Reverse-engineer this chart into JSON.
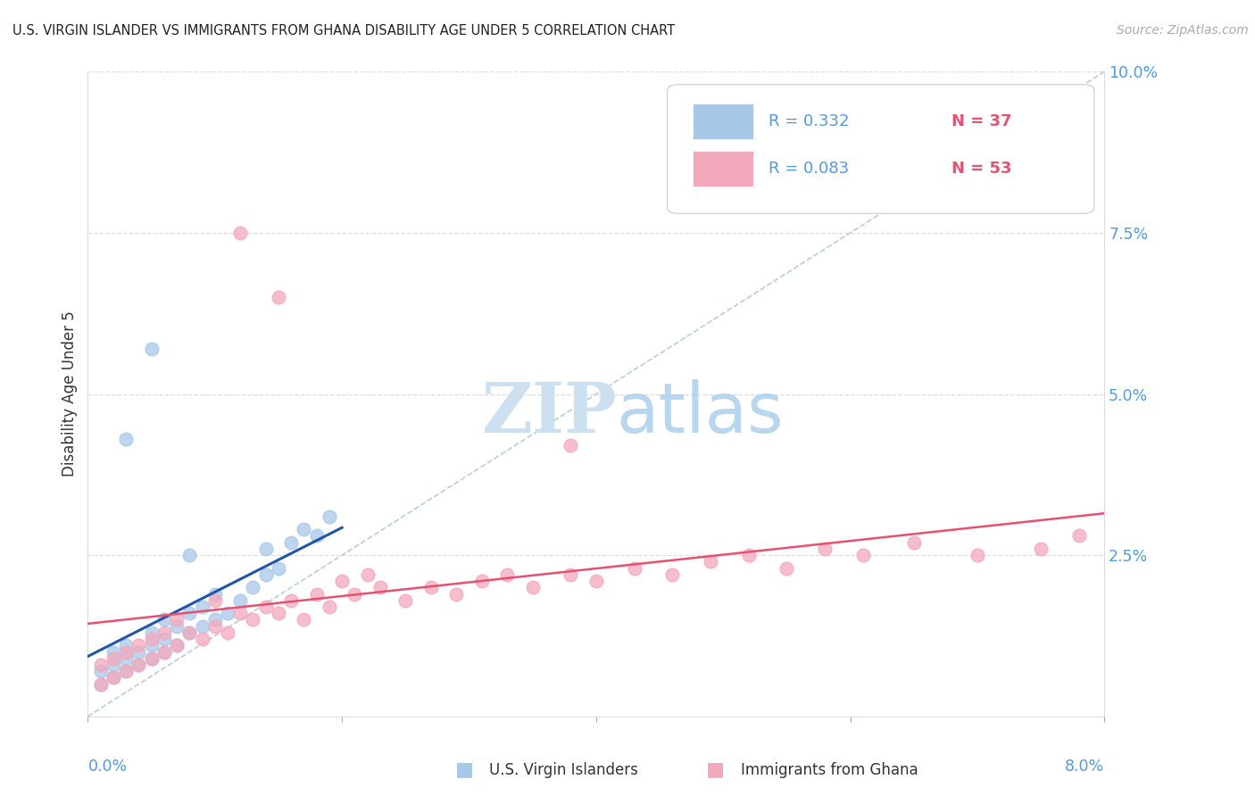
{
  "title": "U.S. VIRGIN ISLANDER VS IMMIGRANTS FROM GHANA DISABILITY AGE UNDER 5 CORRELATION CHART",
  "source": "Source: ZipAtlas.com",
  "ylabel": "Disability Age Under 5",
  "color_blue": "#a8c8e8",
  "color_pink": "#f4a8bc",
  "line_blue": "#2255aa",
  "line_pink": "#e85070",
  "diag_color": "#bbccdd",
  "grid_color": "#dddddd",
  "tick_color": "#5599dd",
  "legend_r1": "R = 0.332",
  "legend_n1": "N = 37",
  "legend_r2": "R = 0.083",
  "legend_n2": "N = 53",
  "xmin": 0.0,
  "xmax": 0.08,
  "ymin": 0.0,
  "ymax": 0.1,
  "blue_x": [
    0.001,
    0.001,
    0.002,
    0.002,
    0.002,
    0.003,
    0.003,
    0.003,
    0.004,
    0.004,
    0.005,
    0.005,
    0.005,
    0.006,
    0.006,
    0.006,
    0.007,
    0.007,
    0.008,
    0.008,
    0.008,
    0.009,
    0.009,
    0.01,
    0.01,
    0.011,
    0.012,
    0.013,
    0.014,
    0.014,
    0.015,
    0.016,
    0.017,
    0.018,
    0.019,
    0.003,
    0.005
  ],
  "blue_y": [
    0.005,
    0.007,
    0.006,
    0.008,
    0.01,
    0.007,
    0.009,
    0.011,
    0.008,
    0.01,
    0.009,
    0.011,
    0.013,
    0.01,
    0.012,
    0.015,
    0.011,
    0.014,
    0.013,
    0.016,
    0.025,
    0.014,
    0.017,
    0.015,
    0.019,
    0.016,
    0.018,
    0.02,
    0.022,
    0.026,
    0.023,
    0.027,
    0.029,
    0.028,
    0.031,
    0.043,
    0.057
  ],
  "pink_x": [
    0.001,
    0.001,
    0.002,
    0.002,
    0.003,
    0.003,
    0.004,
    0.004,
    0.005,
    0.005,
    0.006,
    0.006,
    0.007,
    0.007,
    0.008,
    0.009,
    0.01,
    0.01,
    0.011,
    0.012,
    0.013,
    0.014,
    0.015,
    0.016,
    0.017,
    0.018,
    0.019,
    0.02,
    0.021,
    0.022,
    0.023,
    0.025,
    0.027,
    0.029,
    0.031,
    0.033,
    0.035,
    0.038,
    0.04,
    0.043,
    0.046,
    0.049,
    0.052,
    0.055,
    0.058,
    0.061,
    0.065,
    0.07,
    0.075,
    0.078,
    0.015,
    0.038,
    0.012
  ],
  "pink_y": [
    0.005,
    0.008,
    0.006,
    0.009,
    0.007,
    0.01,
    0.008,
    0.011,
    0.009,
    0.012,
    0.01,
    0.013,
    0.011,
    0.015,
    0.013,
    0.012,
    0.014,
    0.018,
    0.013,
    0.016,
    0.015,
    0.017,
    0.016,
    0.018,
    0.015,
    0.019,
    0.017,
    0.021,
    0.019,
    0.022,
    0.02,
    0.018,
    0.02,
    0.019,
    0.021,
    0.022,
    0.02,
    0.022,
    0.021,
    0.023,
    0.022,
    0.024,
    0.025,
    0.023,
    0.026,
    0.025,
    0.027,
    0.025,
    0.026,
    0.028,
    0.065,
    0.042,
    0.075
  ]
}
